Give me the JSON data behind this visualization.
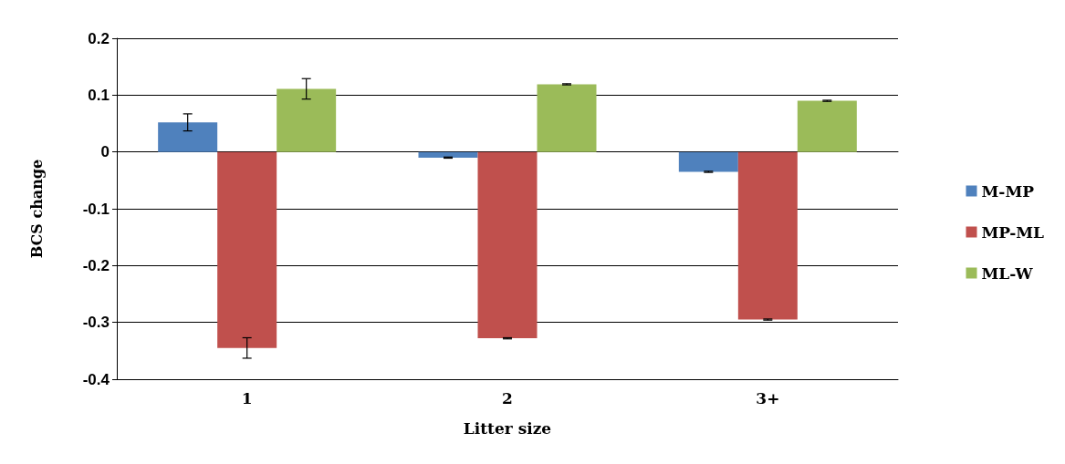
{
  "chart_data": {
    "type": "bar",
    "xlabel": "Litter size",
    "ylabel": "BCS change",
    "categories": [
      "1",
      "2",
      "3+"
    ],
    "series": [
      {
        "name": "M-MP",
        "color": "#4f81bd",
        "values": [
          0.052,
          -0.01,
          -0.035
        ],
        "errors": [
          0.015,
          0.001,
          0.001
        ]
      },
      {
        "name": "MP-ML",
        "color": "#c0504d",
        "values": [
          -0.345,
          -0.328,
          -0.295
        ],
        "errors": [
          0.018,
          0.001,
          0.001
        ]
      },
      {
        "name": "ML-W",
        "color": "#9bbb59",
        "values": [
          0.111,
          0.119,
          0.09
        ],
        "errors": [
          0.018,
          0.001,
          0.001
        ]
      }
    ],
    "ylim": [
      -0.4,
      0.2
    ],
    "yticks": [
      -0.4,
      -0.3,
      -0.2,
      -0.1,
      0,
      0.1,
      0.2
    ],
    "grid": "y",
    "legend": "right"
  }
}
